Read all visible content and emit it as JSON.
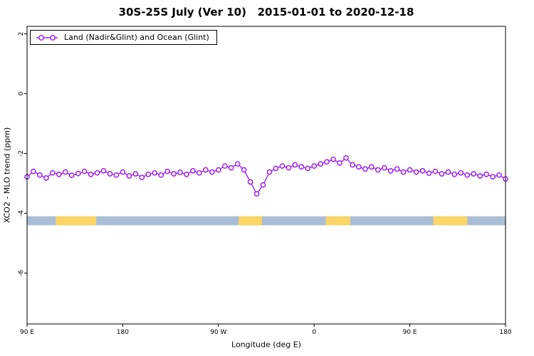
{
  "title": "30S-25S July (Ver 10)   2015-01-01 to 2020-12-18",
  "legend": {
    "label": "Land (Nadir&Glint) and Ocean (Glint)",
    "marker_color": "#A020F0"
  },
  "axes": {
    "x_label": "Longitude (deg E)",
    "y_label": "XCO2 - MLO trend (ppm)"
  },
  "chart_data": {
    "type": "line",
    "title": "30S-25S July (Ver 10)   2015-01-01 to 2020-12-18",
    "xlabel": "Longitude (deg E)",
    "ylabel": "XCO2 - MLO trend (ppm)",
    "xlim": [
      0,
      450
    ],
    "ylim": [
      -7.7,
      2.25
    ],
    "x_axis_note": "x = degrees along axis from left edge; axis reads 90 E, 180, 90 W, 0, 90 E, 180",
    "x_ticks": {
      "positions": [
        0,
        90,
        180,
        270,
        360,
        450
      ],
      "labels": [
        "90 E",
        "180",
        "90 W",
        "0",
        "90 E",
        "180"
      ]
    },
    "y_ticks": {
      "values": [
        2,
        0,
        -2,
        -4,
        -6
      ],
      "labels": [
        "2",
        "0",
        "-2",
        "-4",
        "-6"
      ]
    },
    "grid": false,
    "legend_position": "top-left",
    "series": [
      {
        "name": "Land (Nadir&Glint) and Ocean (Glint)",
        "color": "#A020F0",
        "marker": "open-circle",
        "x": [
          0,
          6,
          12,
          18,
          24,
          30,
          36,
          42,
          48,
          54,
          60,
          66,
          72,
          78,
          84,
          90,
          96,
          102,
          108,
          114,
          120,
          126,
          132,
          138,
          144,
          150,
          156,
          162,
          168,
          174,
          180,
          186,
          192,
          198,
          204,
          210,
          216,
          222,
          228,
          234,
          240,
          246,
          252,
          258,
          264,
          270,
          276,
          282,
          288,
          294,
          300,
          306,
          312,
          318,
          324,
          330,
          336,
          342,
          348,
          354,
          360,
          366,
          372,
          378,
          384,
          390,
          396,
          402,
          408,
          414,
          420,
          426,
          432,
          438,
          444,
          450
        ],
        "y": [
          -2.78,
          -2.6,
          -2.72,
          -2.82,
          -2.65,
          -2.7,
          -2.62,
          -2.73,
          -2.67,
          -2.6,
          -2.7,
          -2.65,
          -2.58,
          -2.68,
          -2.72,
          -2.62,
          -2.75,
          -2.68,
          -2.8,
          -2.7,
          -2.65,
          -2.72,
          -2.6,
          -2.68,
          -2.63,
          -2.7,
          -2.58,
          -2.65,
          -2.55,
          -2.62,
          -2.55,
          -2.42,
          -2.48,
          -2.35,
          -2.55,
          -2.95,
          -3.35,
          -3.05,
          -2.62,
          -2.5,
          -2.42,
          -2.48,
          -2.38,
          -2.45,
          -2.5,
          -2.42,
          -2.35,
          -2.28,
          -2.2,
          -2.32,
          -2.15,
          -2.38,
          -2.45,
          -2.52,
          -2.45,
          -2.55,
          -2.48,
          -2.58,
          -2.52,
          -2.62,
          -2.55,
          -2.62,
          -2.58,
          -2.66,
          -2.6,
          -2.68,
          -2.62,
          -2.7,
          -2.65,
          -2.72,
          -2.68,
          -2.75,
          -2.7,
          -2.78,
          -2.72,
          -2.85
        ]
      }
    ],
    "surface_band": {
      "y_range": [
        -4.1,
        -4.4
      ],
      "ocean_color": "#A9BED6",
      "land_color": "#FBD566",
      "land_segments_axis_deg": [
        [
          27,
          65
        ],
        [
          199,
          221
        ],
        [
          281,
          304
        ],
        [
          382,
          414
        ]
      ]
    }
  }
}
